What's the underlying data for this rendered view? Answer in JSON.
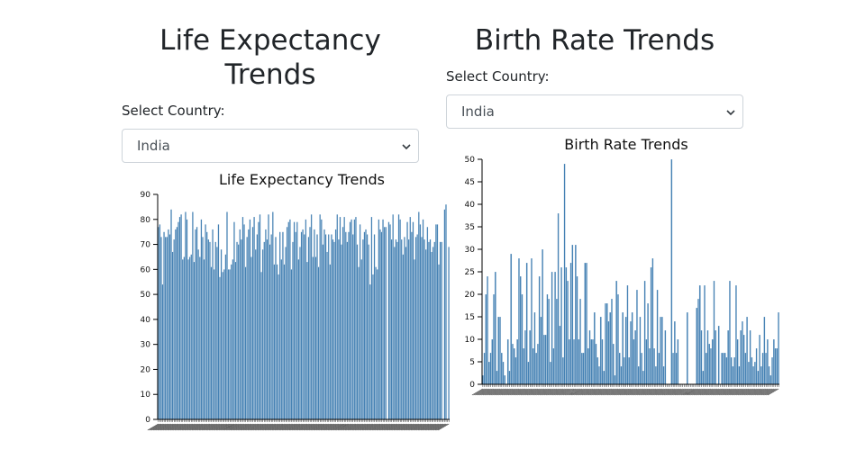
{
  "left_panel": {
    "title": "Life Expectancy Trends",
    "select_label": "Select Country:",
    "select_value": "India"
  },
  "right_panel": {
    "title": "Birth Rate Trends",
    "select_label": "Select Country:",
    "select_value": "India"
  },
  "colors": {
    "bar": "#4682b4"
  },
  "chart_data": [
    {
      "type": "bar",
      "title": "Life Expectancy Trends",
      "xlabel": "",
      "ylabel": "",
      "ylim": [
        0,
        90
      ],
      "yticks": [
        0,
        10,
        20,
        30,
        40,
        50,
        60,
        70,
        80,
        90
      ],
      "values": [
        77,
        78,
        73,
        54,
        75,
        73,
        73,
        76,
        74,
        84,
        67,
        72,
        76,
        77,
        79,
        81,
        82,
        64,
        65,
        83,
        80,
        64,
        65,
        66,
        83,
        63,
        76,
        77,
        68,
        65,
        80,
        73,
        64,
        78,
        75,
        72,
        71,
        61,
        76,
        60,
        71,
        69,
        78,
        57,
        68,
        59,
        60,
        66,
        83,
        60,
        60,
        62,
        64,
        79,
        63,
        71,
        70,
        76,
        72,
        81,
        78,
        61,
        73,
        76,
        80,
        65,
        77,
        81,
        68,
        74,
        79,
        82,
        59,
        68,
        71,
        76,
        72,
        82,
        70,
        74,
        83,
        62,
        73,
        62,
        58,
        75,
        64,
        75,
        62,
        69,
        77,
        79,
        80,
        60,
        71,
        79,
        75,
        79,
        64,
        69,
        75,
        76,
        74,
        80,
        63,
        73,
        77,
        82,
        65,
        76,
        65,
        74,
        61,
        82,
        80,
        70,
        76,
        74,
        67,
        74,
        62,
        74,
        72,
        71,
        76,
        82,
        72,
        81,
        70,
        77,
        81,
        75,
        71,
        75,
        79,
        80,
        74,
        80,
        81,
        70,
        61,
        78,
        64,
        72,
        75,
        76,
        74,
        70,
        54,
        81,
        58,
        74,
        61,
        60,
        80,
        76,
        75,
        80,
        77,
        77,
        0,
        79,
        78,
        72,
        82,
        69,
        72,
        71,
        82,
        80,
        72,
        66,
        73,
        69,
        79,
        72,
        81,
        75,
        79,
        64,
        73,
        74,
        83,
        78,
        73,
        80,
        72,
        68,
        77,
        71,
        72,
        67,
        69,
        71,
        78,
        78,
        62,
        71,
        71,
        0,
        84,
        86,
        0,
        69
      ]
    },
    {
      "type": "bar",
      "title": "Birth Rate Trends",
      "xlabel": "",
      "ylabel": "",
      "ylim": [
        0,
        50
      ],
      "yticks": [
        0,
        5,
        10,
        15,
        20,
        25,
        30,
        35,
        40,
        45,
        50
      ],
      "values": [
        2,
        7,
        20,
        24,
        5,
        7,
        10,
        20,
        25,
        3,
        15,
        15,
        7,
        5,
        2,
        0,
        10,
        3,
        29,
        9,
        8,
        6,
        10,
        28,
        24,
        20,
        8,
        12,
        27,
        5,
        12,
        28,
        8,
        16,
        7,
        9,
        24,
        15,
        30,
        11,
        11,
        20,
        19,
        5,
        25,
        8,
        25,
        19,
        38,
        13,
        26,
        6,
        49,
        26,
        23,
        10,
        27,
        31,
        10,
        31,
        24,
        10,
        19,
        7,
        7,
        27,
        27,
        8,
        12,
        10,
        10,
        16,
        9,
        6,
        4,
        15,
        10,
        3,
        18,
        18,
        14,
        16,
        19,
        9,
        2,
        23,
        20,
        7,
        4,
        16,
        6,
        15,
        22,
        6,
        14,
        16,
        10,
        12,
        21,
        4,
        15,
        7,
        3,
        23,
        10,
        18,
        8,
        26,
        28,
        8,
        4,
        21,
        7,
        15,
        15,
        4,
        12,
        0,
        0,
        0,
        50,
        7,
        14,
        7,
        10,
        0,
        0,
        0,
        0,
        0,
        16,
        0,
        0,
        0,
        0,
        0,
        17,
        19,
        22,
        12,
        3,
        22,
        7,
        12,
        9,
        8,
        10,
        23,
        12,
        0,
        13,
        0,
        7,
        7,
        7,
        6,
        12,
        23,
        6,
        4,
        6,
        22,
        10,
        4,
        12,
        14,
        11,
        7,
        15,
        5,
        12,
        6,
        4,
        5,
        8,
        3,
        11,
        4,
        7,
        15,
        7,
        10,
        4,
        2,
        6,
        10,
        8,
        8,
        16
      ]
    }
  ]
}
